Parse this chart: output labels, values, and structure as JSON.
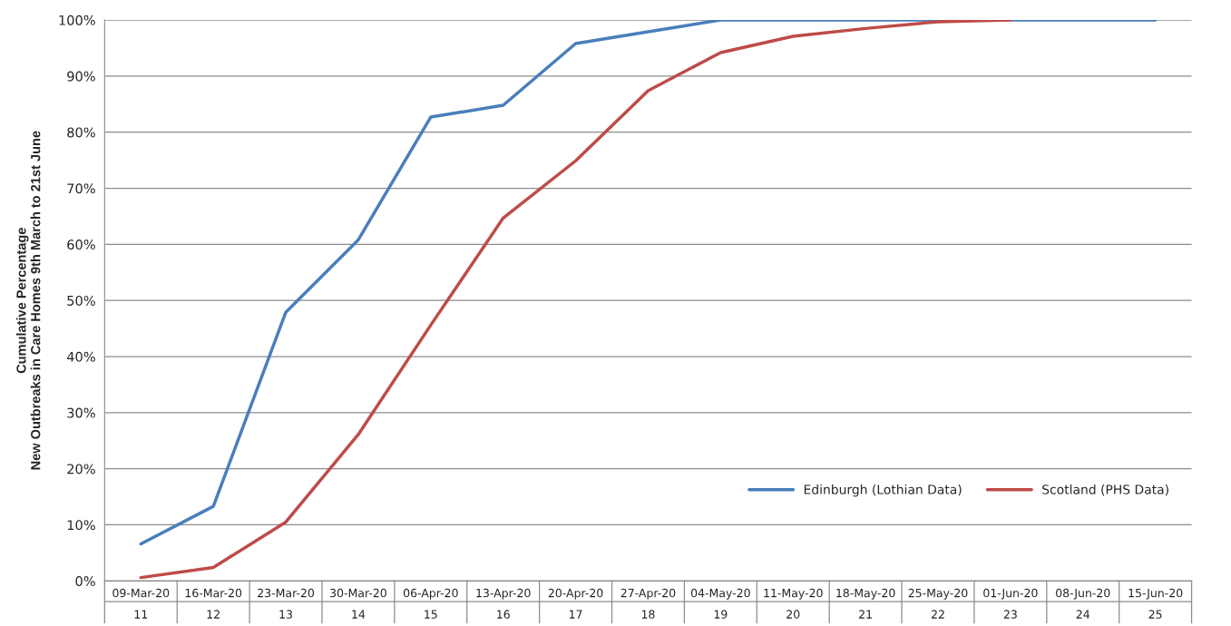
{
  "chart_data": {
    "type": "line",
    "ylabel": "Cumulative Percentage\nNew Outbreaks in Care Homes 9th March to 21st June",
    "categories": [
      "09-Mar-20\n11",
      "16-Mar-20\n12",
      "23-Mar-20\n13",
      "30-Mar-20\n14",
      "06-Apr-20\n15",
      "13-Apr-20\n16",
      "20-Apr-20\n17",
      "27-Apr-20\n18",
      "04-May-20\n19",
      "11-May-20\n20",
      "18-May-20\n21",
      "25-May-20\n22",
      "01-Jun-20\n23",
      "08-Jun-20\n24",
      "15-Jun-20\n25"
    ],
    "series": [
      {
        "name": "Edinburgh (Lothian Data)",
        "color": "#4a7ebb",
        "values": [
          6.6,
          13.3,
          47.9,
          60.8,
          82.7,
          84.8,
          95.8,
          97.9,
          100,
          100,
          100,
          100,
          100,
          100,
          100
        ]
      },
      {
        "name": "Scotland (PHS Data)",
        "color": "#be4b48",
        "values": [
          0.6,
          2.4,
          10.5,
          26.1,
          45.6,
          64.7,
          74.9,
          87.4,
          94.2,
          97.1,
          98.5,
          99.7,
          100,
          null,
          null
        ]
      }
    ],
    "ylim": [
      0,
      100
    ],
    "yticks": [
      {
        "value": 0,
        "label": "0%"
      },
      {
        "value": 10,
        "label": "10%"
      },
      {
        "value": 20,
        "label": "20%"
      },
      {
        "value": 30,
        "label": "30%"
      },
      {
        "value": 40,
        "label": "40%"
      },
      {
        "value": 50,
        "label": "50%"
      },
      {
        "value": 60,
        "label": "60%"
      },
      {
        "value": 70,
        "label": "70%"
      },
      {
        "value": 80,
        "label": "80%"
      },
      {
        "value": 90,
        "label": "90%"
      },
      {
        "value": 100,
        "label": "100%"
      }
    ],
    "grid": "y",
    "legend": "bottom right",
    "marker": "none",
    "line_style": "solid"
  }
}
